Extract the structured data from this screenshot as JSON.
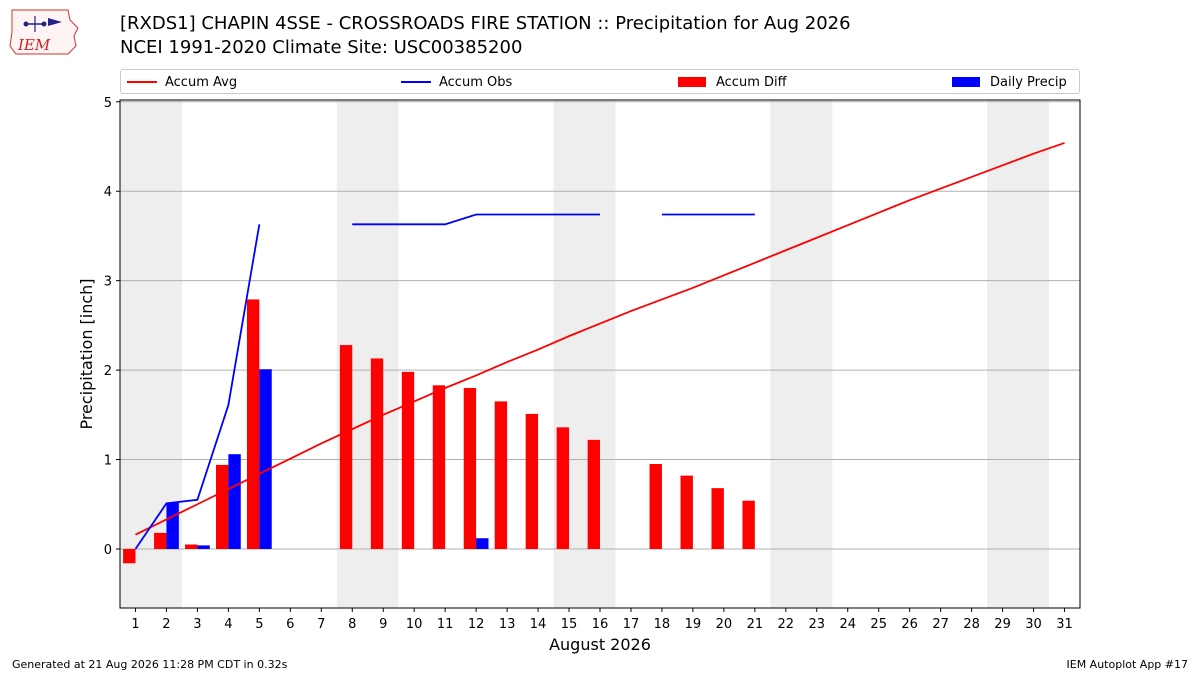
{
  "header": {
    "title_line1": "[RXDS1] CHAPIN 4SSE - CROSSROADS FIRE STATION :: Precipitation for Aug 2026",
    "title_line2": "NCEI 1991-2020 Climate Site: USC00385200",
    "logo_text": "IEM"
  },
  "legend": [
    {
      "label": "Accum Avg",
      "kind": "line",
      "color": "#ff0000"
    },
    {
      "label": "Accum Obs",
      "kind": "line",
      "color": "#0000ff"
    },
    {
      "label": "Accum Diff",
      "kind": "bar",
      "color": "#ff0000"
    },
    {
      "label": "Daily Precip",
      "kind": "bar",
      "color": "#0000ff"
    }
  ],
  "chart_data": {
    "type": "bar",
    "xlabel": "August 2026",
    "ylabel": "Precipitation [inch]",
    "x_ticks": [
      1,
      2,
      3,
      4,
      5,
      6,
      7,
      8,
      9,
      10,
      11,
      12,
      13,
      14,
      15,
      16,
      17,
      18,
      19,
      20,
      21,
      22,
      23,
      24,
      25,
      26,
      27,
      28,
      29,
      30,
      31
    ],
    "xlim": [
      0.5,
      31.5
    ],
    "ylim": [
      -0.66,
      5.02
    ],
    "y_ticks": [
      0,
      1,
      2,
      3,
      4,
      5
    ],
    "grid": true,
    "weekend_shading": [
      [
        1,
        2
      ],
      [
        8,
        9
      ],
      [
        15,
        16
      ],
      [
        22,
        23
      ],
      [
        29,
        30
      ]
    ],
    "series": [
      {
        "name": "Accum Avg",
        "kind": "line",
        "color": "#ff0000",
        "x": [
          1,
          2,
          3,
          4,
          5,
          6,
          7,
          8,
          9,
          10,
          11,
          12,
          13,
          14,
          15,
          16,
          17,
          18,
          19,
          20,
          21,
          22,
          23,
          24,
          25,
          26,
          27,
          28,
          29,
          30,
          31
        ],
        "values": [
          0.16,
          0.33,
          0.5,
          0.67,
          0.84,
          1.01,
          1.18,
          1.34,
          1.5,
          1.65,
          1.8,
          1.94,
          2.09,
          2.23,
          2.38,
          2.52,
          2.66,
          2.79,
          2.92,
          3.06,
          3.2,
          3.34,
          3.48,
          3.62,
          3.76,
          3.9,
          4.03,
          4.16,
          4.29,
          4.42,
          4.54
        ]
      },
      {
        "name": "Accum Obs",
        "kind": "line",
        "color": "#0000ff",
        "segments": [
          {
            "x": [
              1,
              2,
              3,
              4,
              5
            ],
            "values": [
              0.0,
              0.51,
              0.55,
              1.61,
              3.63
            ]
          },
          {
            "x": [
              8,
              9,
              10,
              11,
              12,
              13,
              14,
              15,
              16
            ],
            "values": [
              3.63,
              3.63,
              3.63,
              3.63,
              3.74,
              3.74,
              3.74,
              3.74,
              3.74
            ]
          },
          {
            "x": [
              18,
              19,
              20,
              21
            ],
            "values": [
              3.74,
              3.74,
              3.74,
              3.74
            ]
          }
        ]
      },
      {
        "name": "Accum Diff",
        "kind": "bar",
        "color": "#ff0000",
        "x": [
          1,
          2,
          3,
          4,
          5,
          8,
          9,
          10,
          11,
          12,
          13,
          14,
          15,
          16,
          18,
          19,
          20,
          21
        ],
        "values": [
          -0.16,
          0.18,
          0.05,
          0.94,
          2.79,
          2.28,
          2.13,
          1.98,
          1.83,
          1.8,
          1.65,
          1.51,
          1.36,
          1.22,
          0.95,
          0.82,
          0.68,
          0.54
        ]
      },
      {
        "name": "Daily Precip",
        "kind": "bar",
        "color": "#0000ff",
        "x": [
          1,
          2,
          3,
          4,
          5,
          12
        ],
        "values": [
          0.0,
          0.52,
          0.04,
          1.06,
          2.01,
          0.12
        ]
      }
    ]
  },
  "footer": {
    "left": "Generated at 21 Aug 2026 11:28 PM CDT in 0.32s",
    "right": "IEM Autoplot App #17"
  }
}
